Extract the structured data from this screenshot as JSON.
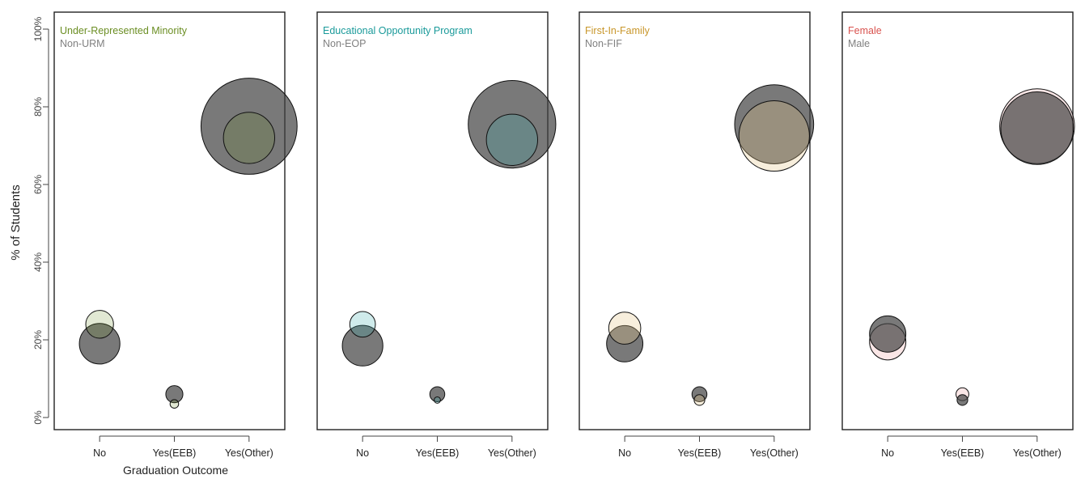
{
  "figure": {
    "ylabel": "% of Students",
    "xlabel": "Graduation Outcome",
    "ytick_labels": [
      "0%",
      "20%",
      "40%",
      "60%",
      "80%",
      "100%"
    ]
  },
  "chart_data": [
    {
      "type": "scatter",
      "categories": [
        "No",
        "Yes(EEB)",
        "Yes(Other)"
      ],
      "ylim": [
        0,
        100
      ],
      "legend_position": "top-left",
      "series": [
        {
          "name": "Under-Represented Minority",
          "color": "#6b8e23",
          "fill": "#6b8e23",
          "fill_opacity": 0.2,
          "values": [
            24,
            3.5,
            72
          ],
          "relative_size": [
            0.26,
            0.08,
            0.48
          ]
        },
        {
          "name": "Non-URM",
          "color": "#808080",
          "fill": "#404040",
          "fill_opacity": 0.7,
          "values": [
            19,
            6,
            75
          ],
          "relative_size": [
            0.38,
            0.16,
            0.9
          ]
        }
      ]
    },
    {
      "type": "scatter",
      "categories": [
        "No",
        "Yes(EEB)",
        "Yes(Other)"
      ],
      "ylim": [
        0,
        100
      ],
      "legend_position": "top-left",
      "series": [
        {
          "name": "Educational Opportunity Program",
          "color": "#1a9a9a",
          "fill": "#40b0b0",
          "fill_opacity": 0.25,
          "values": [
            24,
            4.5,
            71.5
          ],
          "relative_size": [
            0.24,
            0.06,
            0.48
          ]
        },
        {
          "name": "Non-EOP",
          "color": "#808080",
          "fill": "#404040",
          "fill_opacity": 0.7,
          "values": [
            18.5,
            6,
            75.5
          ],
          "relative_size": [
            0.38,
            0.14,
            0.82
          ]
        }
      ]
    },
    {
      "type": "scatter",
      "categories": [
        "No",
        "Yes(EEB)",
        "Yes(Other)"
      ],
      "ylim": [
        0,
        100
      ],
      "legend_position": "top-left",
      "series": [
        {
          "name": "First-In-Family",
          "color": "#c8962a",
          "fill": "#e6c88a",
          "fill_opacity": 0.3,
          "values": [
            23,
            4.5,
            72.5
          ],
          "relative_size": [
            0.3,
            0.1,
            0.66
          ]
        },
        {
          "name": "Non-FIF",
          "color": "#808080",
          "fill": "#404040",
          "fill_opacity": 0.7,
          "values": [
            19,
            6,
            75.5
          ],
          "relative_size": [
            0.34,
            0.14,
            0.74
          ]
        }
      ]
    },
    {
      "type": "scatter",
      "categories": [
        "No",
        "Yes(EEB)",
        "Yes(Other)"
      ],
      "ylim": [
        0,
        100
      ],
      "legend_position": "top-left",
      "series": [
        {
          "name": "Female",
          "color": "#d9534f",
          "fill": "#f2c0c0",
          "fill_opacity": 0.4,
          "values": [
            19.5,
            6,
            75
          ],
          "relative_size": [
            0.34,
            0.12,
            0.7
          ]
        },
        {
          "name": "Male",
          "color": "#808080",
          "fill": "#404040",
          "fill_opacity": 0.7,
          "values": [
            21.5,
            4.5,
            74.5
          ],
          "relative_size": [
            0.34,
            0.1,
            0.68
          ]
        }
      ]
    }
  ]
}
